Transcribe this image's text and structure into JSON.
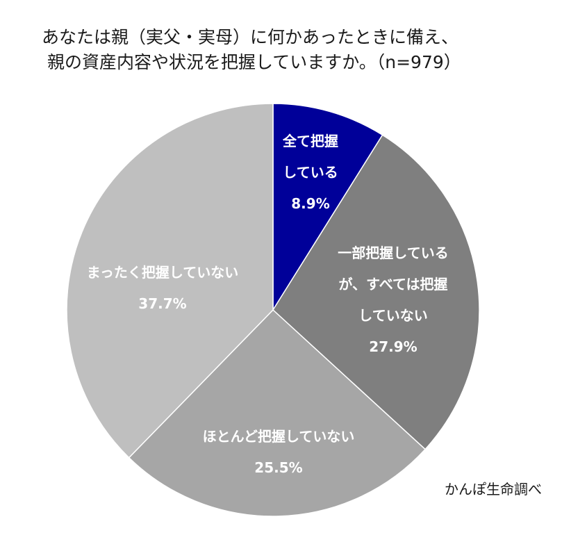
{
  "chart_data": {
    "type": "pie",
    "title_lines": [
      "あなたは親（実父・実母）に何かあったときに備え、",
      "親の資産内容や状況を把握していますか。（n=979）"
    ],
    "slices": [
      {
        "label_lines": [
          "全て把握",
          "している"
        ],
        "value": 8.9,
        "value_label": "8.9%",
        "color": "#000099"
      },
      {
        "label_lines": [
          "一部把握している",
          "が、すべては把握",
          "していない"
        ],
        "value": 27.9,
        "value_label": "27.9%",
        "color": "#7f7f7f"
      },
      {
        "label_lines": [
          "ほとんど把握していない"
        ],
        "value": 25.5,
        "value_label": "25.5%",
        "color": "#a6a6a6"
      },
      {
        "label_lines": [
          "まったく把握していない"
        ],
        "value": 37.7,
        "value_label": "37.7%",
        "color": "#bfbfbf"
      }
    ],
    "start_angle_deg": 0,
    "direction": "clockwise"
  },
  "source": "かんぽ生命調べ"
}
